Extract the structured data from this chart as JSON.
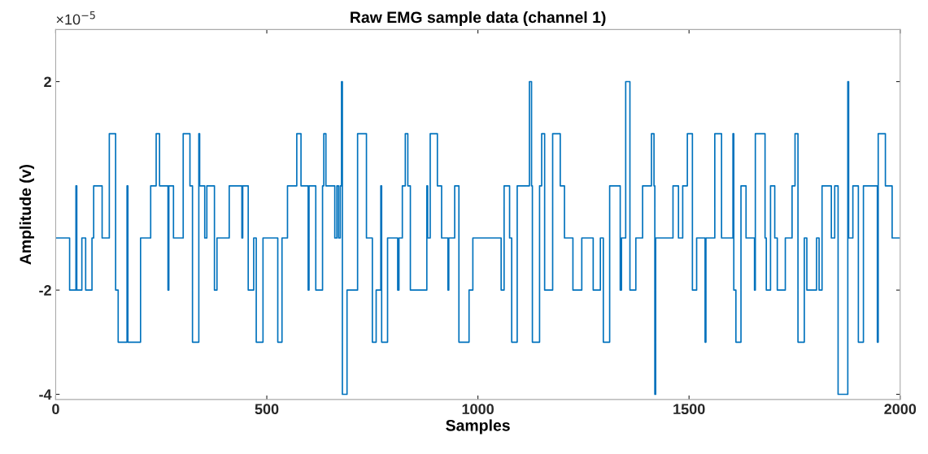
{
  "chart_data": {
    "type": "step",
    "title": "Raw EMG sample data (channel 1)",
    "xlabel": "Samples",
    "ylabel": "Amplitude (v)",
    "annotations": [
      "×10$^{−5}$"
    ],
    "xlim": [
      0,
      2000
    ],
    "xticks": [
      0,
      500,
      1000,
      1500,
      2000
    ],
    "ylim": [
      -4.1,
      3
    ],
    "yticks": [
      -4,
      -2,
      2
    ],
    "grid": false,
    "series": [
      {
        "color": "#0072bd",
        "x": [
          0,
          33,
          48,
          50,
          62,
          71,
          86,
          90,
          110,
          127,
          142,
          148,
          169,
          171,
          201,
          225,
          238,
          246,
          266,
          268,
          279,
          302,
          318,
          324,
          339,
          341,
          353,
          358,
          376,
          382,
          411,
          441,
          443,
          456,
          469,
          475,
          491,
          526,
          536,
          549,
          571,
          581,
          598,
          600,
          616,
          632,
          635,
          640,
          661,
          666,
          670,
          674,
          677,
          679,
          690,
          715,
          736,
          750,
          759,
          770,
          772,
          786,
          810,
          813,
          821,
          828,
          834,
          840,
          879,
          881,
          887,
          904,
          914,
          929,
          931,
          945,
          955,
          979,
          988,
          1055,
          1062,
          1075,
          1080,
          1093,
          1122,
          1127,
          1129,
          1146,
          1151,
          1158,
          1177,
          1195,
          1205,
          1225,
          1246,
          1273,
          1290,
          1297,
          1312,
          1337,
          1340,
          1350,
          1360,
          1374,
          1390,
          1411,
          1417,
          1419,
          1421,
          1462,
          1475,
          1485,
          1496,
          1508,
          1518,
          1538,
          1540,
          1561,
          1577,
          1604,
          1606,
          1611,
          1623,
          1635,
          1655,
          1657,
          1680,
          1683,
          1693,
          1703,
          1709,
          1728,
          1744,
          1751,
          1758,
          1773,
          1779,
          1802,
          1808,
          1815,
          1837,
          1845,
          1853,
          1876,
          1878,
          1888,
          1901,
          1913,
          1946,
          1948,
          1965,
          1981,
          2000
        ],
        "values": [
          -1,
          -2,
          0,
          -2,
          -1,
          -2,
          -1,
          0,
          -1,
          1,
          -2,
          -3,
          0,
          -3,
          -1,
          0,
          1,
          0,
          -2,
          0,
          -1,
          1,
          0,
          -3,
          1,
          0,
          -1,
          0,
          -2,
          -1,
          0,
          -1,
          0,
          -2,
          -1,
          -3,
          -1,
          -3,
          -1,
          0,
          1,
          0,
          -2,
          0,
          -2,
          0,
          1,
          0,
          -1,
          0,
          -1,
          0,
          2,
          -4,
          -2,
          1,
          -1,
          -3,
          -2,
          0,
          -3,
          -1,
          -2,
          -1,
          0,
          1,
          0,
          -2,
          0,
          -1,
          1,
          0,
          -1,
          -2,
          -1,
          0,
          -3,
          -2,
          -1,
          -2,
          0,
          -1,
          -3,
          0,
          2,
          0,
          -3,
          0,
          1,
          -2,
          1,
          0,
          -1,
          -2,
          -1,
          -2,
          -1,
          -3,
          0,
          -2,
          -1,
          2,
          -2,
          -1,
          0,
          1,
          0,
          -4,
          -1,
          0,
          -1,
          0,
          1,
          -2,
          -1,
          -3,
          -1,
          1,
          -1,
          1,
          -2,
          -3,
          0,
          -1,
          -2,
          1,
          -1,
          -2,
          0,
          -1,
          -2,
          -1,
          0,
          1,
          -3,
          -1,
          -2,
          -1,
          -2,
          0,
          -1,
          0,
          -4,
          2,
          -1,
          0,
          -3,
          0,
          -3,
          1,
          0,
          -1,
          -1
        ]
      }
    ]
  }
}
